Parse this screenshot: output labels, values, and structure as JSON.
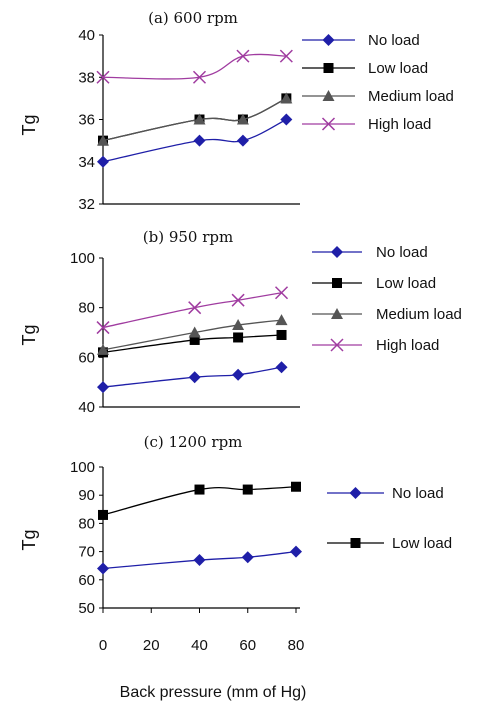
{
  "figure": {
    "xlabel": "Back pressure (mm of Hg)",
    "x_ticks": [
      "0",
      "20",
      "40",
      "60",
      "80"
    ]
  },
  "chart_data": [
    {
      "type": "line",
      "title": "(a) 600 rpm",
      "ylabel": "Tg",
      "xlim": [
        0,
        80
      ],
      "ylim": [
        32,
        40
      ],
      "y_ticks": [
        "32",
        "34",
        "36",
        "38",
        "40"
      ],
      "legend_position": "right",
      "series": [
        {
          "name": "No load",
          "color": "#1f1fa8",
          "marker": "diamond",
          "x": [
            0,
            40,
            58,
            76
          ],
          "y": [
            34,
            35,
            35,
            36
          ]
        },
        {
          "name": "Low  load",
          "color": "#000000",
          "marker": "square",
          "x": [
            0,
            40,
            58,
            76
          ],
          "y": [
            35,
            36,
            36,
            37
          ]
        },
        {
          "name": "Medium load",
          "color": "#555555",
          "marker": "triangle",
          "x": [
            0,
            40,
            58,
            76
          ],
          "y": [
            35,
            36,
            36,
            37
          ]
        },
        {
          "name": "High load",
          "color": "#a03ca0",
          "marker": "x",
          "x": [
            0,
            40,
            58,
            76
          ],
          "y": [
            38,
            38,
            39,
            39
          ]
        }
      ]
    },
    {
      "type": "line",
      "title": "(b) 950 rpm",
      "ylabel": "Tg",
      "xlim": [
        0,
        80
      ],
      "ylim": [
        40,
        100
      ],
      "y_ticks": [
        "40",
        "60",
        "80",
        "100"
      ],
      "legend_position": "right",
      "series": [
        {
          "name": "No load",
          "color": "#1f1fa8",
          "marker": "diamond",
          "x": [
            0,
            38,
            56,
            74
          ],
          "y": [
            48,
            52,
            53,
            56
          ]
        },
        {
          "name": "Low  load",
          "color": "#000000",
          "marker": "square",
          "x": [
            0,
            38,
            56,
            74
          ],
          "y": [
            62,
            67,
            68,
            69
          ]
        },
        {
          "name": "Medium load",
          "color": "#555555",
          "marker": "triangle",
          "x": [
            0,
            38,
            56,
            74
          ],
          "y": [
            63,
            70,
            73,
            75
          ]
        },
        {
          "name": "High load",
          "color": "#a03ca0",
          "marker": "x",
          "x": [
            0,
            38,
            56,
            74
          ],
          "y": [
            72,
            80,
            83,
            86
          ]
        }
      ]
    },
    {
      "type": "line",
      "title": "(c) 1200 rpm",
      "ylabel": "Tg",
      "xlim": [
        0,
        80
      ],
      "ylim": [
        50,
        100
      ],
      "y_ticks": [
        "50",
        "60",
        "70",
        "80",
        "90",
        "100"
      ],
      "legend_position": "right",
      "series": [
        {
          "name": "No load",
          "color": "#1f1fa8",
          "marker": "diamond",
          "x": [
            0,
            40,
            60,
            80
          ],
          "y": [
            64,
            67,
            68,
            70
          ]
        },
        {
          "name": "Low  load",
          "color": "#000000",
          "marker": "square",
          "x": [
            0,
            40,
            60,
            80
          ],
          "y": [
            83,
            92,
            92,
            93
          ]
        }
      ]
    }
  ]
}
